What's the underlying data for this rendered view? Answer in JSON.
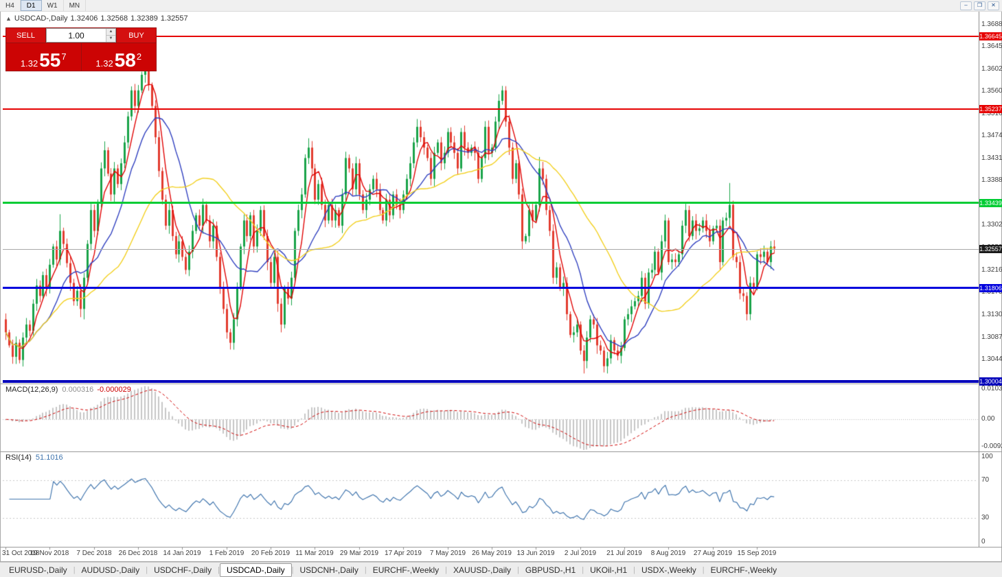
{
  "app": {
    "timeframes": [
      "H4",
      "D1",
      "W1",
      "MN"
    ],
    "active_timeframe": "D1",
    "window_controls": [
      {
        "name": "minimize-window-button",
        "glyph": "–"
      },
      {
        "name": "restore-window-button",
        "glyph": "❐"
      },
      {
        "name": "close-window-button",
        "glyph": "✕"
      }
    ]
  },
  "header": {
    "collapse_icon": "▲",
    "title": "USDCAD-,Daily"
  },
  "one_click": {
    "sell_label": "SELL",
    "buy_label": "BUY",
    "volume": "1.00",
    "spin_up": "▲",
    "spin_down": "▼",
    "bid": {
      "prefix": "1.32",
      "big": "55",
      "sup": "7"
    },
    "ask": {
      "prefix": "1.32",
      "big": "58",
      "sup": "2"
    }
  },
  "price_axis": {
    "ticks": [
      "1.36880",
      "1.36450",
      "1.36020",
      "1.35600",
      "1.35160",
      "1.34740",
      "1.34310",
      "1.33880",
      "1.33450",
      "1.33020",
      "1.32590",
      "1.32160",
      "1.31730",
      "1.31300",
      "1.30870",
      "1.30440",
      "1.30010"
    ]
  },
  "hlines": [
    {
      "price": 1.36645,
      "label": "1.36645",
      "color": "#e60000",
      "thickness": 2,
      "name": "resistance-line-upper"
    },
    {
      "price": 1.35237,
      "label": "1.35237",
      "color": "#e60000",
      "thickness": 2,
      "name": "resistance-line-lower"
    },
    {
      "price": 1.33439,
      "label": "1.33439",
      "color": "#00cc33",
      "thickness": 3,
      "name": "green-level-line"
    },
    {
      "price": 1.31806,
      "label": "1.31806",
      "color": "#0000dd",
      "thickness": 3,
      "name": "blue-support-line"
    },
    {
      "price": 1.30004,
      "label": "1.30004",
      "color": "#0000bb",
      "thickness": 4,
      "name": "blue-baseline-line"
    }
  ],
  "current_price": {
    "value": 1.32557,
    "label": "1.32557",
    "tag_bg": "#1a1a1a"
  },
  "chart_data": {
    "type": "candlestick",
    "symbol": "USDCAD",
    "timeframe": "Daily",
    "ohlc_display": {
      "open": "1.32406",
      "high": "1.32568",
      "low": "1.32389",
      "close": "1.32557"
    },
    "ylim": [
      1.2998,
      1.371
    ],
    "bars_per_label": 13,
    "x_labels": [
      "31 Oct 2018",
      "19 Nov 2018",
      "7 Dec 2018",
      "26 Dec 2018",
      "14 Jan 2019",
      "1 Feb 2019",
      "20 Feb 2019",
      "11 Mar 2019",
      "29 Mar 2019",
      "17 Apr 2019",
      "7 May 2019",
      "26 May 2019",
      "13 Jun 2019",
      "2 Jul 2019",
      "21 Jul 2019",
      "8 Aug 2019",
      "27 Aug 2019",
      "15 Sep 2019"
    ],
    "closes": [
      1.3095,
      1.307,
      1.3048,
      1.3075,
      1.3042,
      1.3085,
      1.311,
      1.3098,
      1.315,
      1.3185,
      1.3165,
      1.3205,
      1.318,
      1.3225,
      1.326,
      1.3235,
      1.329,
      1.3265,
      1.3228,
      1.319,
      1.3155,
      1.3175,
      1.314,
      1.32,
      1.3265,
      1.333,
      1.329,
      1.3345,
      1.341,
      1.3445,
      1.34,
      1.336,
      1.341,
      1.338,
      1.342,
      1.346,
      1.351,
      1.356,
      1.353,
      1.356,
      1.359,
      1.3605,
      1.357,
      1.353,
      1.347,
      1.3405,
      1.335,
      1.33,
      1.333,
      1.328,
      1.3245,
      1.327,
      1.324,
      1.3215,
      1.325,
      1.329,
      1.332,
      1.33,
      1.334,
      1.331,
      1.327,
      1.33,
      1.324,
      1.318,
      1.314,
      1.3095,
      1.3075,
      1.312,
      1.318,
      1.326,
      1.331,
      1.328,
      1.332,
      1.326,
      1.329,
      1.333,
      1.328,
      1.323,
      1.319,
      1.324,
      1.315,
      1.311,
      1.318,
      1.316,
      1.32,
      1.329,
      1.333,
      1.336,
      1.343,
      1.345,
      1.341,
      1.335,
      1.338,
      1.334,
      1.331,
      1.334,
      1.331,
      1.333,
      1.33,
      1.336,
      1.343,
      1.341,
      1.337,
      1.342,
      1.336,
      1.333,
      1.335,
      1.337,
      1.339,
      1.337,
      1.333,
      1.331,
      1.335,
      1.332,
      1.336,
      1.334,
      1.333,
      1.336,
      1.339,
      1.342,
      1.346,
      1.349,
      1.347,
      1.345,
      1.343,
      1.339,
      1.344,
      1.346,
      1.342,
      1.344,
      1.348,
      1.346,
      1.344,
      1.341,
      1.348,
      1.345,
      1.344,
      1.345,
      1.344,
      1.339,
      1.343,
      1.349,
      1.344,
      1.345,
      1.35,
      1.354,
      1.356,
      1.35,
      1.345,
      1.339,
      1.342,
      1.336,
      1.327,
      1.328,
      1.333,
      1.331,
      1.334,
      1.341,
      1.339,
      1.333,
      1.329,
      1.32,
      1.322,
      1.318,
      1.319,
      1.313,
      1.309,
      1.3095,
      1.311,
      1.306,
      1.304,
      1.3085,
      1.312,
      1.311,
      1.307,
      1.306,
      1.303,
      1.3045,
      1.308,
      1.306,
      1.305,
      1.3065,
      1.312,
      1.313,
      1.3145,
      1.3155,
      1.3165,
      1.32,
      1.315,
      1.321,
      1.3215,
      1.325,
      1.321,
      1.327,
      1.331,
      1.323,
      1.3235,
      1.323,
      1.3245,
      1.33,
      1.333,
      1.328,
      1.331,
      1.329,
      1.3295,
      1.331,
      1.329,
      1.327,
      1.3295,
      1.33,
      1.323,
      1.331,
      1.3315,
      1.334,
      1.324,
      1.323,
      1.317,
      1.3165,
      1.313,
      1.319,
      1.318,
      1.3245,
      1.324,
      1.325,
      1.323,
      1.326,
      1.3256
    ],
    "open_rule": "previous_close",
    "wick": 0.0015,
    "extreme_highs": {
      "16": 1.3322,
      "29": 1.3462,
      "41": 1.3625,
      "89": 1.3468,
      "121": 1.3505,
      "146": 1.3565,
      "157": 1.3432,
      "213": 1.3382
    },
    "extreme_lows": {
      "4": 1.3036,
      "23": 1.312,
      "66": 1.3062,
      "81": 1.3095,
      "152": 1.3255,
      "170": 1.3016,
      "176": 1.3018,
      "218": 1.3118
    },
    "up_color": "#18a348",
    "down_color": "#e23b2e",
    "moving_averages": [
      {
        "period": 5,
        "color": "#e00000",
        "name": "ma-fast-red"
      },
      {
        "period": 13,
        "color": "#2f3fbf",
        "name": "ma-mid-blue"
      },
      {
        "period": 34,
        "color": "#f2cf1d",
        "name": "ma-slow-yellow"
      }
    ]
  },
  "macd": {
    "title": "MACD(12,26,9)",
    "main_value": "0.000316",
    "signal_value": "-0.000029",
    "axis_max_label": "0.010311",
    "axis_zero_label": "0.00",
    "axis_min_label": "-0.00920",
    "fast": 12,
    "slow": 26,
    "signal": 9,
    "scale_max": 0.010311,
    "scale_min": -0.0092,
    "hist_color": "#c6c6c6",
    "signal_color": "#cf0000"
  },
  "rsi": {
    "title": "RSI(14)",
    "value": "51.1016",
    "period": 14,
    "ylim": [
      0,
      100
    ],
    "axis_labels": [
      "100",
      "70",
      "30",
      "0"
    ],
    "levels": [
      70,
      30
    ],
    "line_color": "#3f74ad",
    "level_color": "#c6c6c6"
  },
  "tabs": {
    "active_index": 3,
    "items": [
      "EURUSD-,Daily",
      "AUDUSD-,Daily",
      "USDCHF-,Daily",
      "USDCAD-,Daily",
      "USDCNH-,Daily",
      "EURCHF-,Weekly",
      "XAUUSD-,Daily",
      "GBPUSD-,H1",
      "UKOil-,H1",
      "USDX-,Weekly",
      "EURCHF-,Weekly"
    ]
  }
}
